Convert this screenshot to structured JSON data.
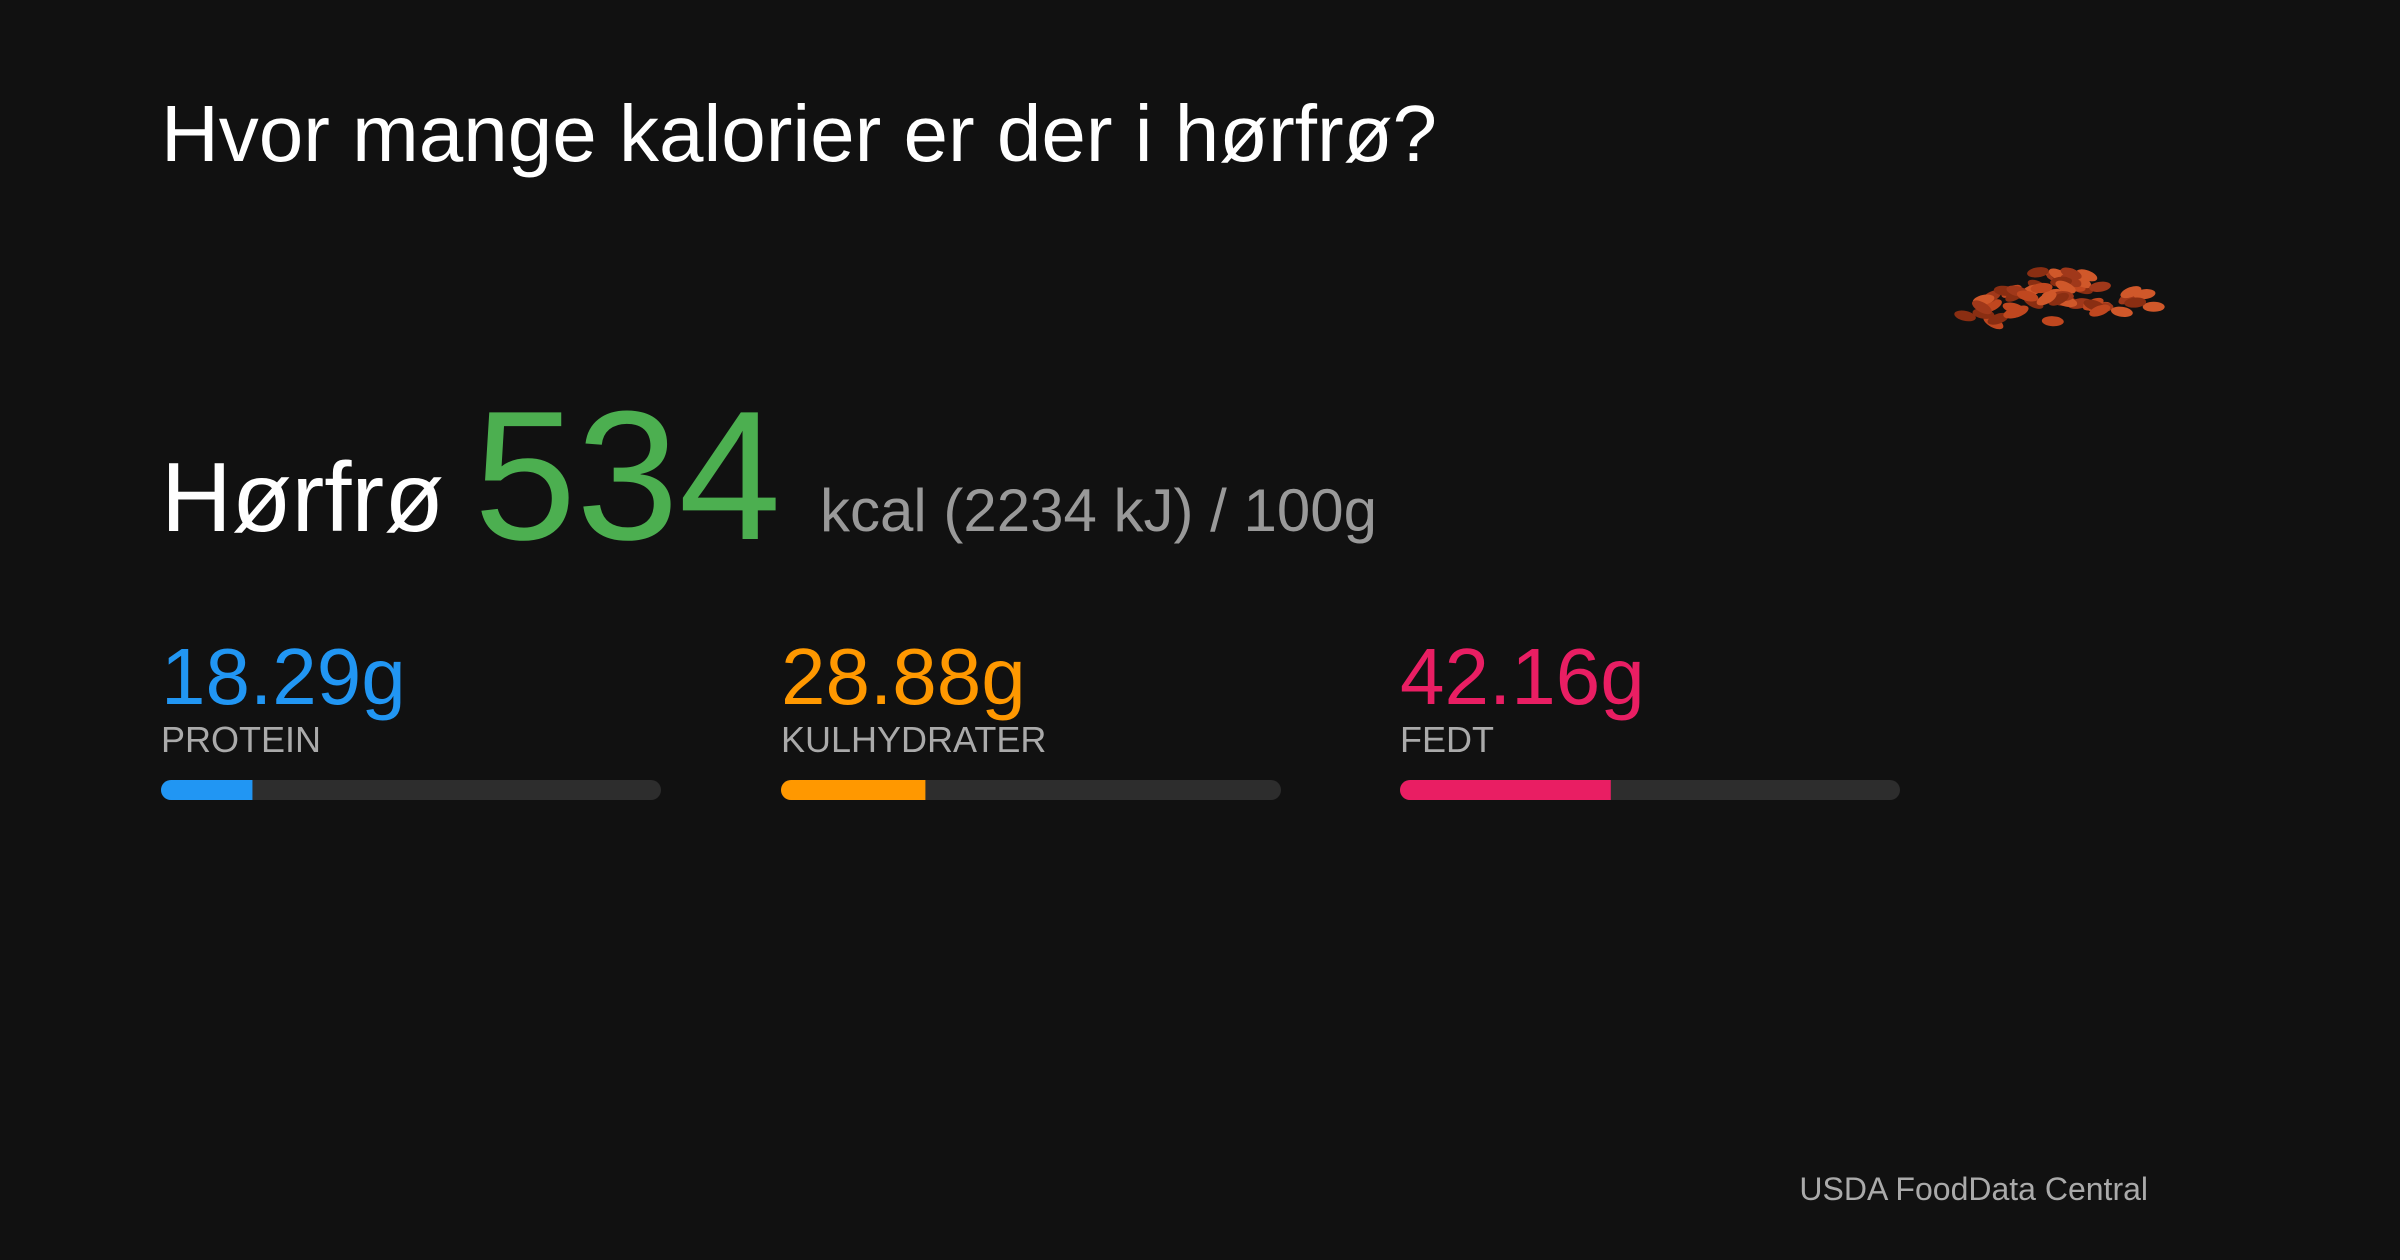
{
  "title": "Hvor mange kalorier er der i hørfrø?",
  "food": {
    "name": "Hørfrø",
    "calories": "534",
    "unit": "kcal (2234 kJ) / 100g"
  },
  "macros": {
    "xlim": [
      0,
      100
    ],
    "items": [
      {
        "value": 18.29,
        "value_label": "18.29g",
        "name": "PROTEIN",
        "color": "#2196f3"
      },
      {
        "value": 28.88,
        "value_label": "28.88g",
        "name": "KULHYDRATER",
        "color": "#ff9800"
      },
      {
        "value": 42.16,
        "value_label": "42.16g",
        "name": "FEDT",
        "color": "#e91e63"
      }
    ]
  },
  "source": "USDA FoodData Central"
}
